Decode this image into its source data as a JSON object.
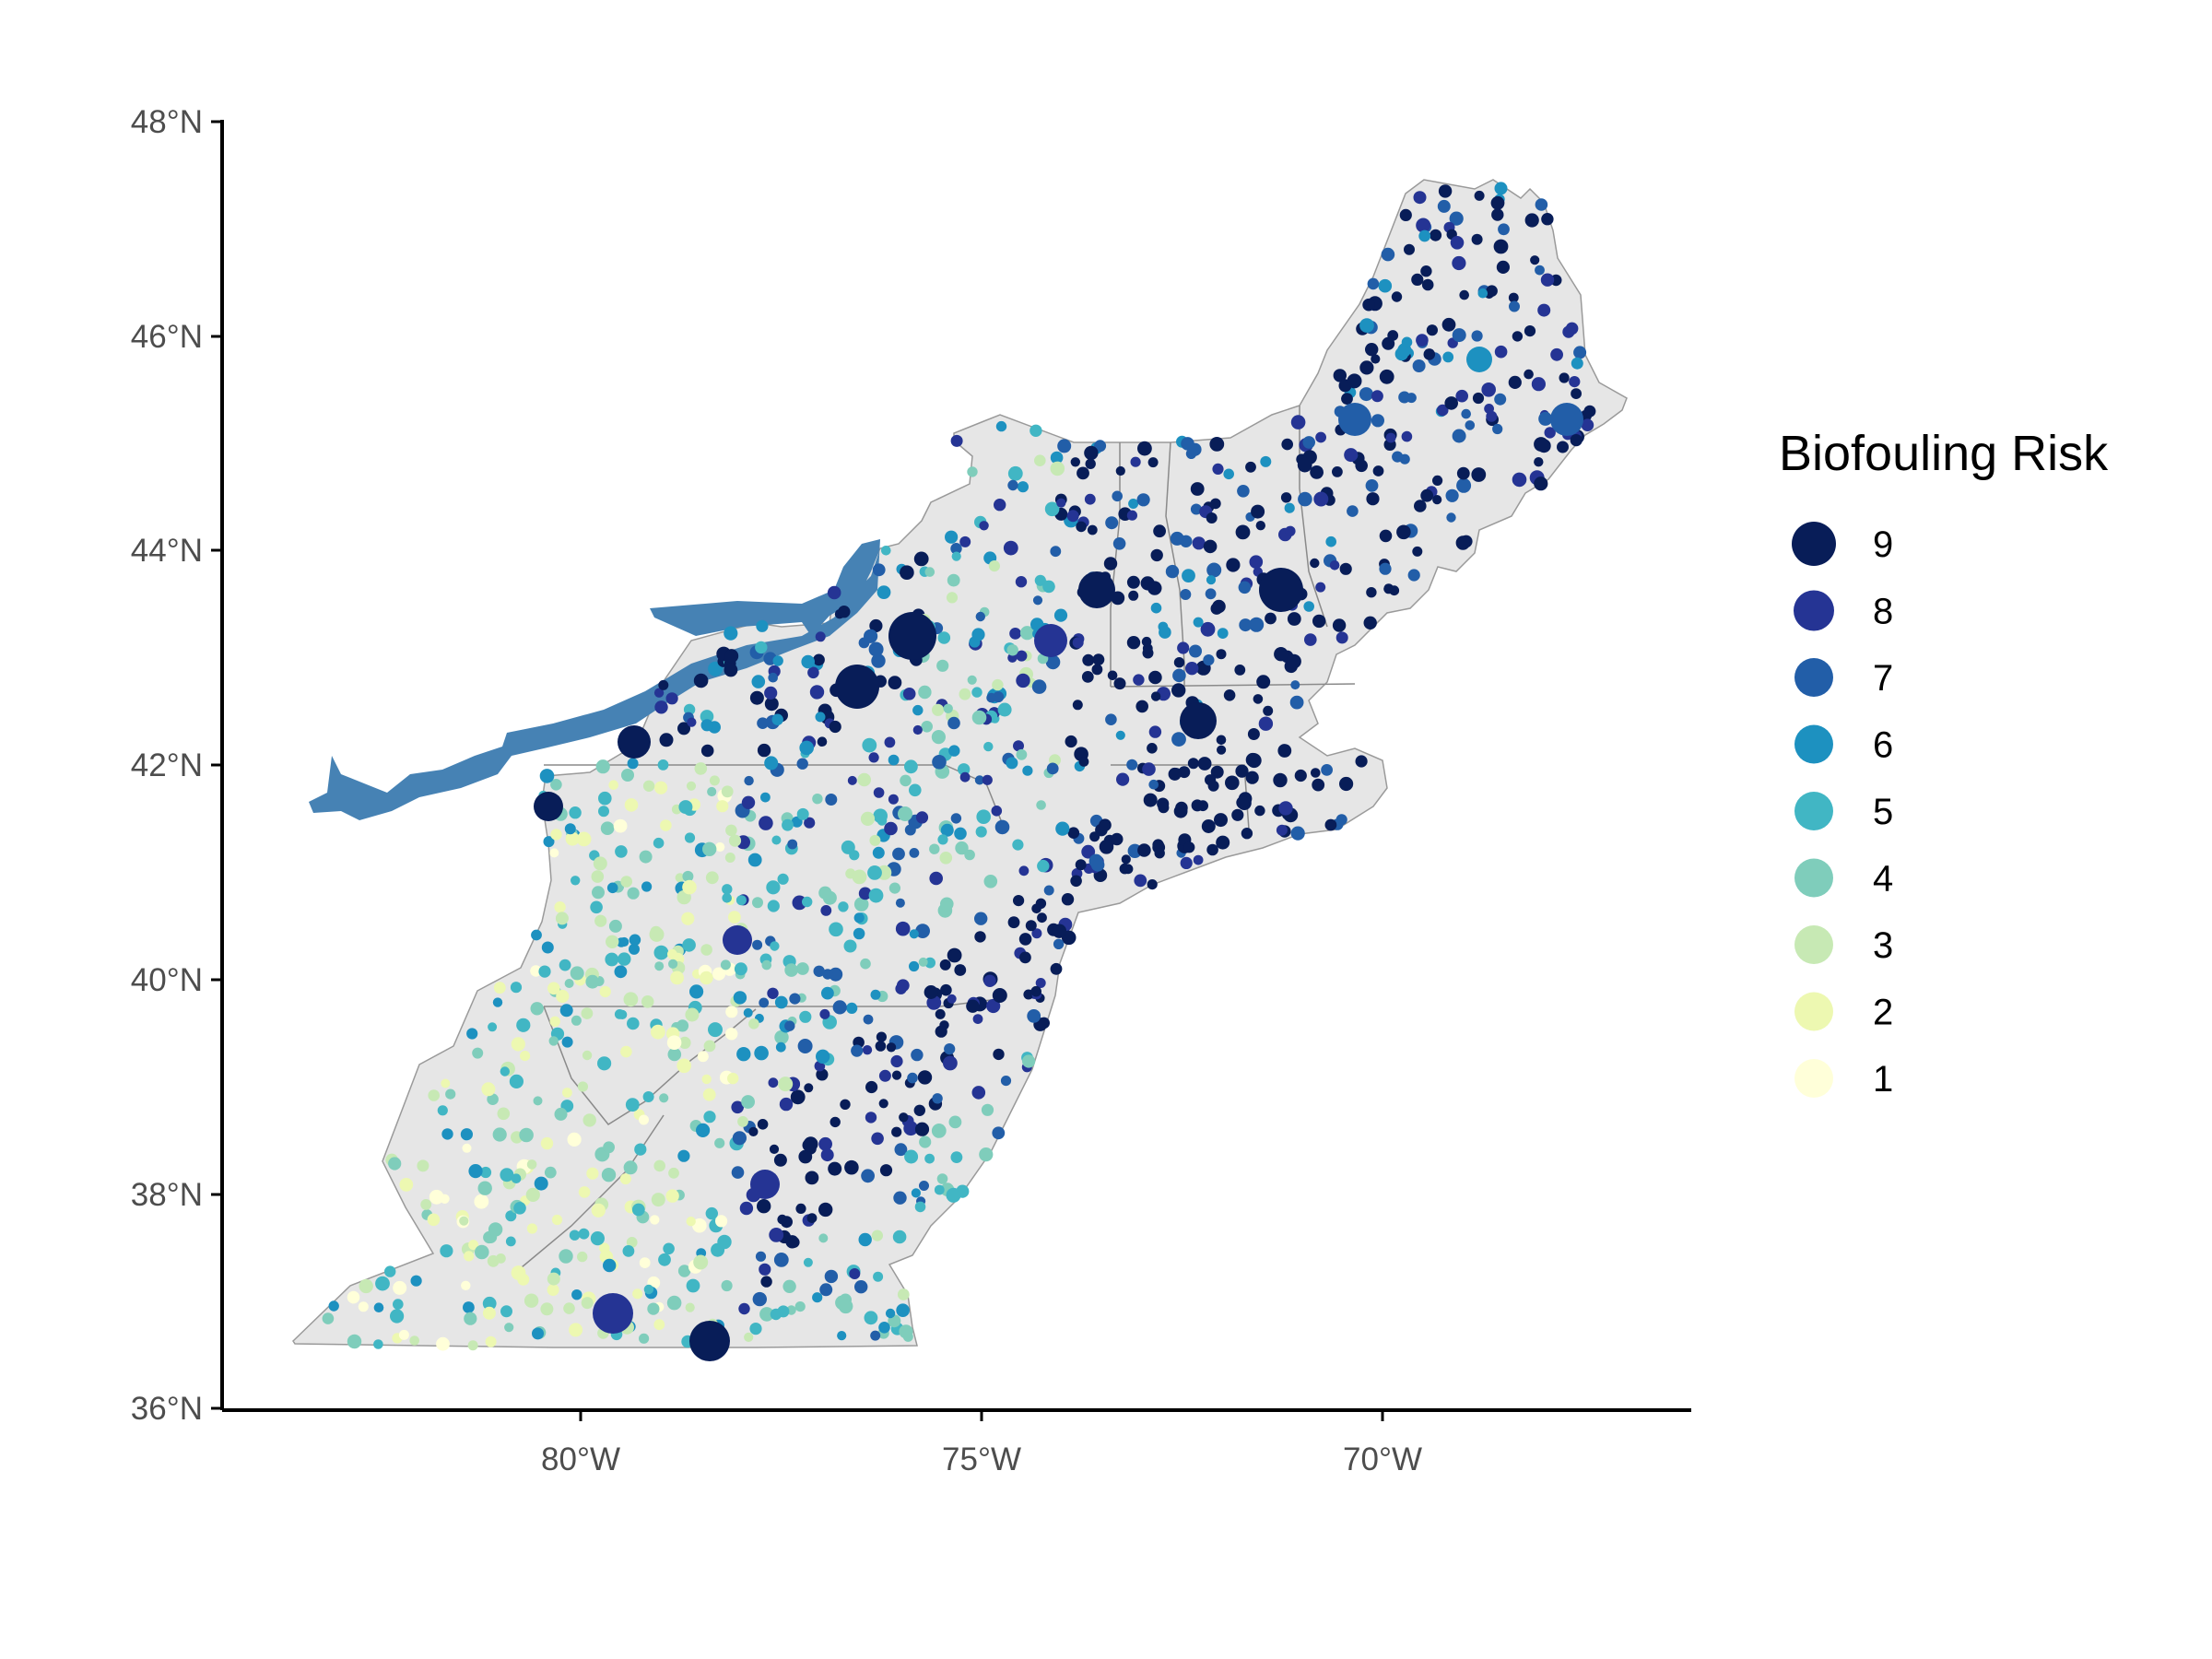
{
  "map": {
    "y_axis_ticks": [
      "48°N",
      "46°N",
      "44°N",
      "42°N",
      "40°N",
      "38°N",
      "36°N"
    ],
    "x_axis_ticks": [
      "80°W",
      "75°W",
      "70°W"
    ],
    "land_color": "#e6e6e6",
    "water_color": "#4682b4",
    "legend": {
      "title": "Biofouling Risk",
      "items": [
        {
          "label": "9",
          "color": "#081d58"
        },
        {
          "label": "8",
          "color": "#253494"
        },
        {
          "label": "7",
          "color": "#225ea8"
        },
        {
          "label": "6",
          "color": "#1d91c0"
        },
        {
          "label": "5",
          "color": "#41b6c4"
        },
        {
          "label": "4",
          "color": "#7fcdbb"
        },
        {
          "label": "3",
          "color": "#c7e9b4"
        },
        {
          "label": "2",
          "color": "#edf8b1"
        },
        {
          "label": "1",
          "color": "#ffffd9"
        }
      ]
    }
  }
}
